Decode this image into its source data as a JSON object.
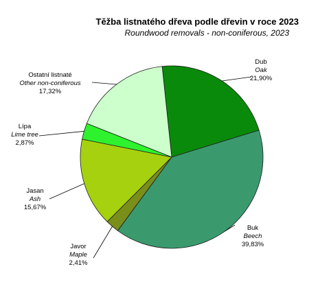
{
  "chart_data": {
    "type": "pie",
    "title": "Těžba listnatého dřeva podle dřevin v roce 2023",
    "subtitle": "Roundwood removals - non-coniferous, 2023",
    "slices": [
      {
        "name_cz": "Dub",
        "name_en": "Oak",
        "value": 21.9,
        "value_label": "21,90%",
        "color": "#0a8a0a"
      },
      {
        "name_cz": "Buk",
        "name_en": "Beech",
        "value": 39.83,
        "value_label": "39,83%",
        "color": "#3a9a6e"
      },
      {
        "name_cz": "Javor",
        "name_en": "Maple",
        "value": 2.41,
        "value_label": "2,41%",
        "color": "#7a8e1a"
      },
      {
        "name_cz": "Jasan",
        "name_en": "Ash",
        "value": 15.67,
        "value_label": "15,67%",
        "color": "#a6d10e"
      },
      {
        "name_cz": "Lípa",
        "name_en": "Lime tree",
        "value": 2.87,
        "value_label": "2,87%",
        "color": "#2ef22e"
      },
      {
        "name_cz": "Ostatní listnaté",
        "name_en": "Other non-coniferous",
        "value": 17.32,
        "value_label": "17,32%",
        "color": "#ccffcc"
      }
    ]
  }
}
